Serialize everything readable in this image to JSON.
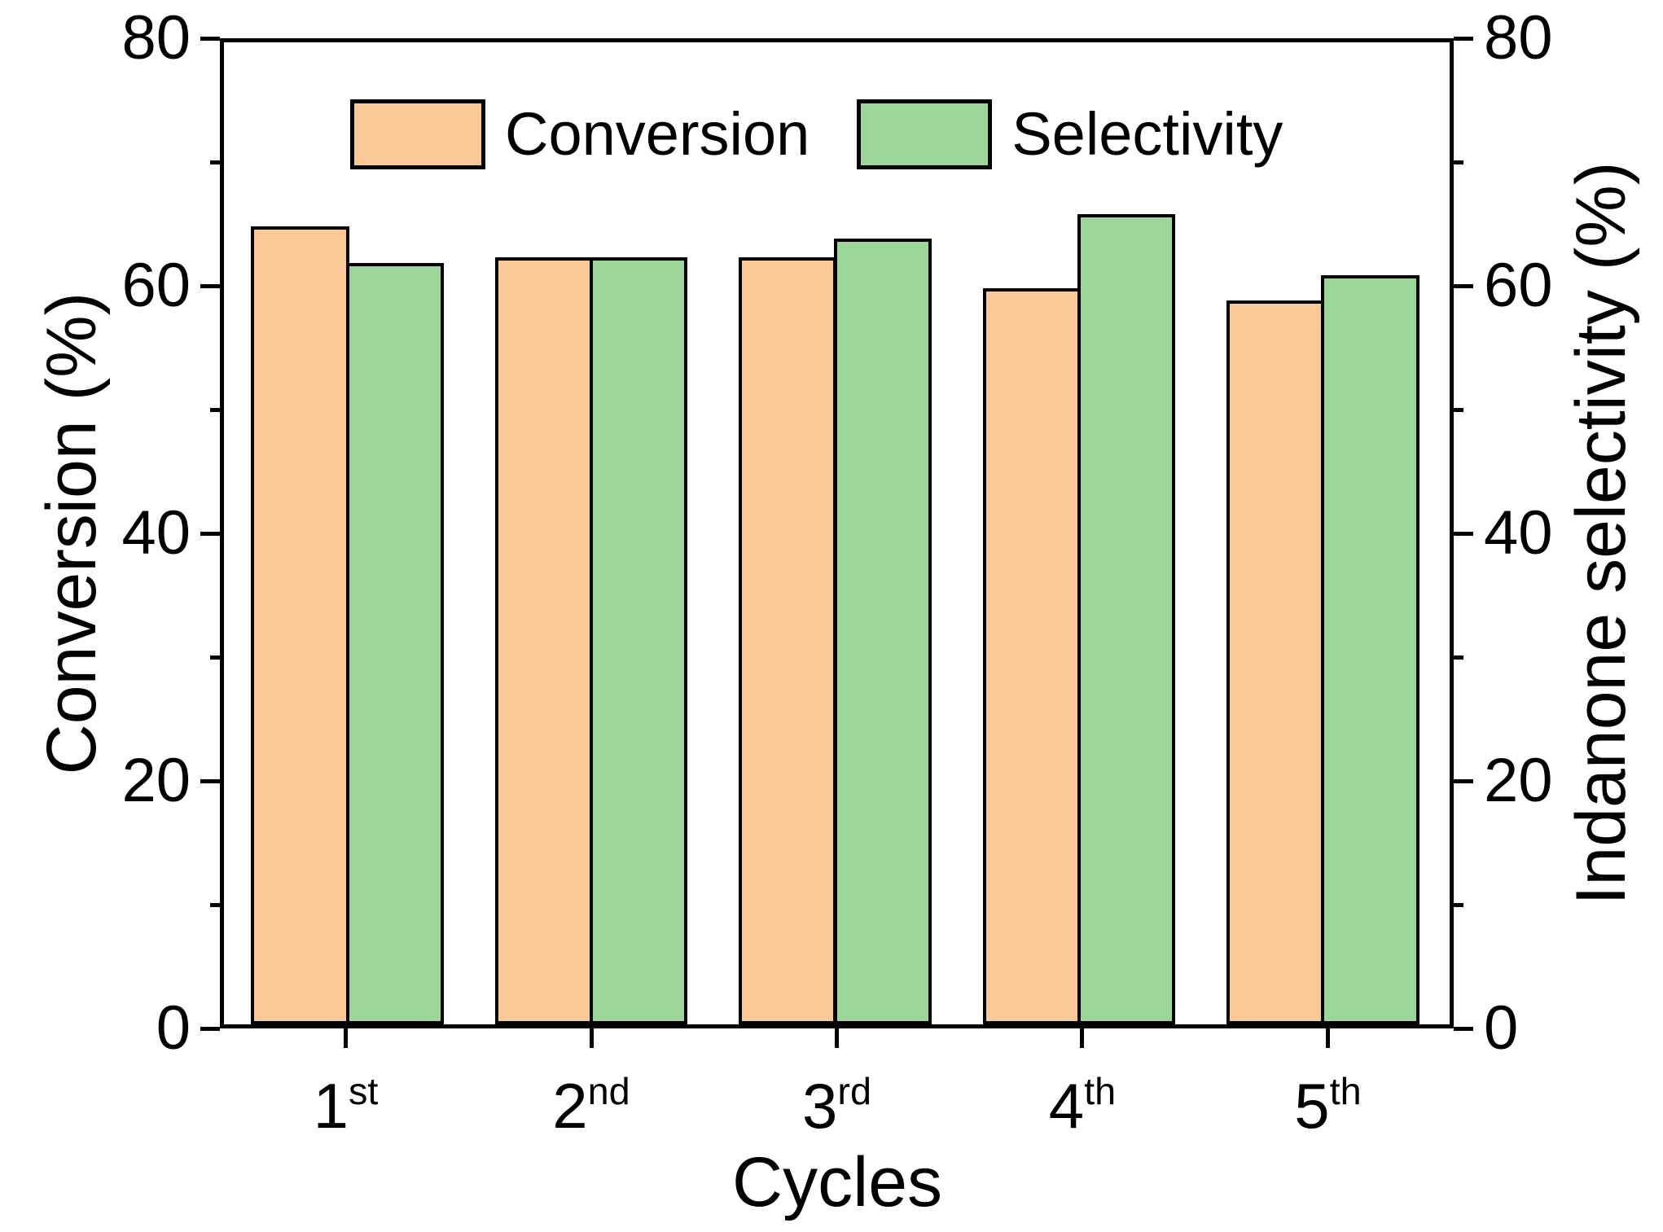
{
  "chart_data": {
    "type": "bar",
    "title": "",
    "categories": [
      "1st",
      "2nd",
      "3rd",
      "4th",
      "5th"
    ],
    "series": [
      {
        "name": "Conversion",
        "color": "#FBC897",
        "values": [
          65,
          62.5,
          62.5,
          60,
          59
        ]
      },
      {
        "name": "Selectivity",
        "color": "#9DD49A",
        "values": [
          62,
          62.5,
          64,
          66,
          61
        ]
      }
    ],
    "xlabel": "Cycles",
    "ylabel_left": "Conversion (%)",
    "ylabel_right": "Indanone selectivity (%)",
    "ylim": [
      0,
      80
    ],
    "yticks_major": [
      0,
      20,
      40,
      60,
      80
    ],
    "yticks_minor": [
      10,
      30,
      50,
      70
    ],
    "legend_position": "top-center",
    "grid": false,
    "bar_edge_color": "#000000",
    "frame_color": "#000000",
    "background": "#FFFFFF"
  }
}
